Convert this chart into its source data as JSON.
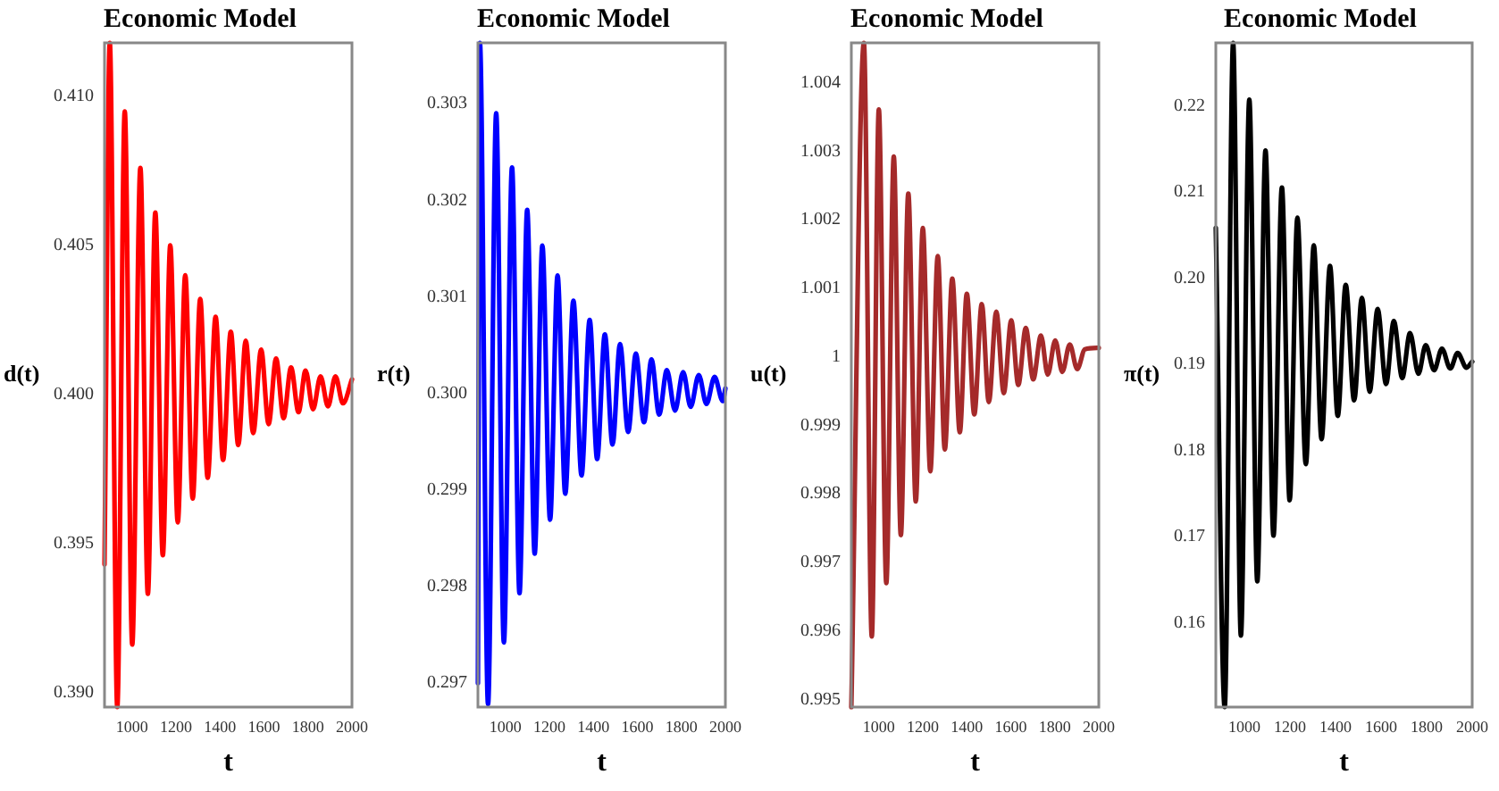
{
  "chart_data": [
    {
      "type": "line",
      "title": "Economic Model",
      "xlabel": "t",
      "ylabel": "d(t)",
      "xlim": [
        875,
        2000
      ],
      "xticks": [
        1000,
        1200,
        1400,
        1600,
        1800,
        2000
      ],
      "ylim": [
        0.3895,
        0.4118
      ],
      "yticks": [
        {
          "value": 0.39,
          "label": "0.390"
        },
        {
          "value": 0.395,
          "label": "0.395"
        },
        {
          "value": 0.4,
          "label": "0.400"
        },
        {
          "value": 0.405,
          "label": "0.405"
        },
        {
          "value": 0.41,
          "label": "0.410"
        }
      ],
      "grid": false,
      "legend": false,
      "marker": "none",
      "line_style": "solid",
      "x": [
        875,
        899,
        933,
        967,
        1001,
        1038,
        1072,
        1106,
        1140,
        1174,
        1208,
        1242,
        1276,
        1310,
        1344,
        1380,
        1414,
        1449,
        1483,
        1517,
        1551,
        1587,
        1621,
        1655,
        1689,
        1723,
        1757,
        1789,
        1823,
        1857,
        1891,
        1925,
        1959,
        2000
      ],
      "series": [
        {
          "color": "#ff0000",
          "values": [
            0.3943,
            0.4118,
            0.3895,
            0.4095,
            0.3916,
            0.4076,
            0.3933,
            0.4061,
            0.3946,
            0.405,
            0.3957,
            0.404,
            0.3965,
            0.4032,
            0.3972,
            0.4026,
            0.3978,
            0.4021,
            0.3983,
            0.4018,
            0.3987,
            0.4015,
            0.399,
            0.4012,
            0.3992,
            0.4009,
            0.3994,
            0.4008,
            0.3995,
            0.4006,
            0.3996,
            0.4006,
            0.3997,
            0.4005
          ]
        }
      ]
    },
    {
      "type": "line",
      "title": "Economic Model",
      "xlabel": "t",
      "ylabel": "r(t)",
      "xlim": [
        875,
        2000
      ],
      "xticks": [
        1000,
        1200,
        1400,
        1600,
        1800,
        2000
      ],
      "ylim": [
        0.29675,
        0.30363
      ],
      "yticks": [
        {
          "value": 0.297,
          "label": "0.297"
        },
        {
          "value": 0.298,
          "label": "0.298"
        },
        {
          "value": 0.299,
          "label": "0.299"
        },
        {
          "value": 0.3,
          "label": "0.300"
        },
        {
          "value": 0.301,
          "label": "0.301"
        },
        {
          "value": 0.302,
          "label": "0.302"
        },
        {
          "value": 0.303,
          "label": "0.303"
        }
      ],
      "grid": false,
      "legend": false,
      "marker": "none",
      "line_style": "solid",
      "x": [
        875,
        884,
        921,
        958,
        993,
        1030,
        1064,
        1099,
        1133,
        1168,
        1203,
        1237,
        1272,
        1309,
        1346,
        1383,
        1417,
        1452,
        1487,
        1521,
        1558,
        1593,
        1630,
        1664,
        1699,
        1734,
        1771,
        1808,
        1842,
        1879,
        1914,
        1951,
        1988,
        2000
      ],
      "series": [
        {
          "color": "#0000ff",
          "values": [
            0.297,
            0.30363,
            0.29678,
            0.3029,
            0.29742,
            0.30234,
            0.29793,
            0.3019,
            0.29834,
            0.30153,
            0.29869,
            0.30122,
            0.29896,
            0.30096,
            0.29915,
            0.30076,
            0.29932,
            0.30061,
            0.29947,
            0.30051,
            0.2996,
            0.30041,
            0.2997,
            0.30035,
            0.29978,
            0.30024,
            0.29982,
            0.30022,
            0.29986,
            0.30019,
            0.29989,
            0.30017,
            0.29992,
            0.30005
          ]
        }
      ]
    },
    {
      "type": "line",
      "title": "Economic Model",
      "xlabel": "t",
      "ylabel": "u(t)",
      "xlim": [
        875,
        2000
      ],
      "xticks": [
        1000,
        1200,
        1400,
        1600,
        1800,
        2000
      ],
      "ylim": [
        0.99489,
        1.00458
      ],
      "yticks": [
        0.995,
        0.996,
        0.997,
        0.998,
        0.999,
        1,
        1.001,
        1.002,
        1.003,
        1.004
      ],
      "grid": false,
      "legend": false,
      "marker": "none",
      "line_style": "solid",
      "x": [
        875,
        932,
        968,
        1000,
        1034,
        1068,
        1100,
        1134,
        1168,
        1200,
        1234,
        1268,
        1300,
        1334,
        1368,
        1400,
        1434,
        1468,
        1500,
        1534,
        1568,
        1602,
        1634,
        1668,
        1702,
        1737,
        1768,
        1802,
        1834,
        1868,
        1902,
        1937,
        2000
      ],
      "series": [
        {
          "color": "#a52a2a",
          "values": [
            0.99489,
            1.00458,
            0.99592,
            1.00361,
            0.9967,
            1.00292,
            0.9974,
            1.00238,
            0.99789,
            1.00188,
            0.99833,
            1.00147,
            0.99865,
            1.00114,
            0.9989,
            1.00092,
            0.99916,
            1.00077,
            0.99934,
            1.00066,
            0.99947,
            1.00053,
            0.99959,
            1.00042,
            0.99967,
            1.00031,
            0.99974,
            1.00024,
            0.99978,
            1.00018,
            0.99982,
            1.00011,
            1.00013
          ]
        }
      ]
    },
    {
      "type": "line",
      "title": "Economic Model",
      "xlabel": "t",
      "ylabel": "π(t)",
      "xlim": [
        875,
        2000
      ],
      "xticks": [
        1000,
        1200,
        1400,
        1600,
        1800,
        2000
      ],
      "ylim": [
        0.1502,
        0.2273
      ],
      "yticks": [
        0.16,
        0.17,
        0.18,
        0.19,
        {
          "value": 0.2,
          "label": "0.20"
        },
        0.21,
        0.22
      ],
      "grid": false,
      "legend": false,
      "marker": "none",
      "line_style": "solid",
      "x": [
        875,
        914,
        951,
        985,
        1022,
        1057,
        1093,
        1128,
        1165,
        1199,
        1233,
        1270,
        1305,
        1339,
        1376,
        1410,
        1445,
        1482,
        1516,
        1550,
        1585,
        1622,
        1656,
        1693,
        1727,
        1764,
        1796,
        1833,
        1867,
        1904,
        1936,
        1975,
        2000
      ],
      "series": [
        {
          "color": "#000000",
          "values": [
            0.2058,
            0.1502,
            0.2273,
            0.1585,
            0.2207,
            0.1648,
            0.2148,
            0.1701,
            0.2105,
            0.1742,
            0.207,
            0.1784,
            0.2038,
            0.1813,
            0.2014,
            0.184,
            0.1992,
            0.1858,
            0.1977,
            0.1868,
            0.1964,
            0.1877,
            0.195,
            0.1884,
            0.1936,
            0.1889,
            0.1922,
            0.1893,
            0.1918,
            0.1895,
            0.1913,
            0.1896,
            0.1903
          ]
        }
      ]
    }
  ]
}
